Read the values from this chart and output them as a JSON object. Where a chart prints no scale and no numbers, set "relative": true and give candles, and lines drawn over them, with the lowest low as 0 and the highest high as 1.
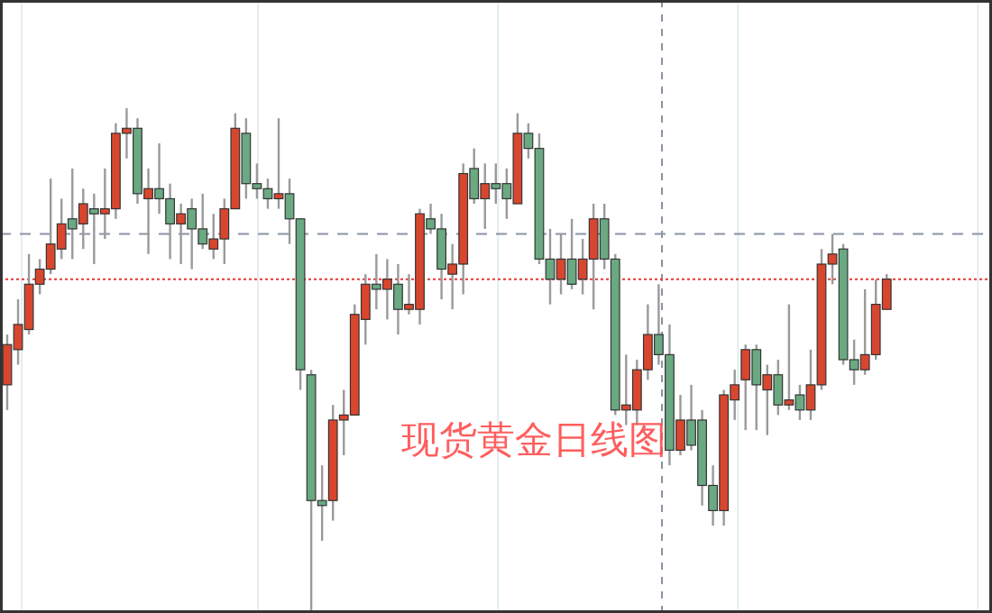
{
  "chart_data": {
    "type": "candlestick",
    "title": "现货黄金日线图",
    "relative": true,
    "categories": [
      null,
      null,
      null,
      null,
      null,
      null,
      null,
      null,
      null,
      null,
      null,
      null,
      null,
      null,
      null,
      null,
      null,
      null,
      null,
      null,
      null,
      null,
      null,
      null,
      null,
      null,
      null,
      null,
      null,
      null,
      null,
      null,
      null,
      null,
      null,
      null,
      null,
      null,
      null,
      null,
      null,
      null,
      null,
      null,
      null,
      null,
      null,
      null,
      null,
      null,
      null,
      null,
      null,
      null,
      null,
      null,
      null,
      null,
      null,
      null,
      null,
      null,
      null,
      null,
      null,
      null,
      null,
      null,
      null,
      null,
      null,
      null,
      null,
      null,
      null,
      null,
      null,
      null,
      null,
      null,
      null,
      null
    ],
    "ohlc": [
      [
        0.45,
        0.55,
        0.4,
        0.53
      ],
      [
        0.52,
        0.62,
        0.49,
        0.57
      ],
      [
        0.56,
        0.71,
        0.55,
        0.65
      ],
      [
        0.65,
        0.7,
        0.63,
        0.68
      ],
      [
        0.68,
        0.86,
        0.67,
        0.73
      ],
      [
        0.72,
        0.82,
        0.7,
        0.77
      ],
      [
        0.78,
        0.88,
        0.7,
        0.76
      ],
      [
        0.77,
        0.84,
        0.72,
        0.81
      ],
      [
        0.8,
        0.83,
        0.69,
        0.79
      ],
      [
        0.79,
        0.88,
        0.74,
        0.8
      ],
      [
        0.8,
        0.97,
        0.78,
        0.95
      ],
      [
        0.95,
        1.0,
        0.9,
        0.96
      ],
      [
        0.96,
        0.98,
        0.81,
        0.83
      ],
      [
        0.82,
        0.88,
        0.71,
        0.84
      ],
      [
        0.84,
        0.93,
        0.79,
        0.82
      ],
      [
        0.82,
        0.85,
        0.7,
        0.77
      ],
      [
        0.77,
        0.81,
        0.69,
        0.79
      ],
      [
        0.8,
        0.82,
        0.68,
        0.76
      ],
      [
        0.76,
        0.83,
        0.72,
        0.73
      ],
      [
        0.72,
        0.79,
        0.7,
        0.74
      ],
      [
        0.74,
        0.82,
        0.69,
        0.8
      ],
      [
        0.8,
        0.99,
        0.8,
        0.96
      ],
      [
        0.95,
        0.98,
        0.82,
        0.85
      ],
      [
        0.85,
        0.89,
        0.82,
        0.84
      ],
      [
        0.84,
        0.86,
        0.8,
        0.82
      ],
      [
        0.82,
        0.98,
        0.8,
        0.83
      ],
      [
        0.83,
        0.86,
        0.73,
        0.78
      ],
      [
        0.78,
        0.78,
        0.44,
        0.48
      ],
      [
        0.47,
        0.48,
        0.0,
        0.22
      ],
      [
        0.22,
        0.29,
        0.14,
        0.21
      ],
      [
        0.22,
        0.41,
        0.18,
        0.38
      ],
      [
        0.38,
        0.44,
        0.31,
        0.39
      ],
      [
        0.39,
        0.61,
        0.39,
        0.59
      ],
      [
        0.58,
        0.67,
        0.53,
        0.65
      ],
      [
        0.65,
        0.71,
        0.6,
        0.64
      ],
      [
        0.64,
        0.7,
        0.58,
        0.66
      ],
      [
        0.65,
        0.69,
        0.55,
        0.6
      ],
      [
        0.6,
        0.67,
        0.59,
        0.61
      ],
      [
        0.6,
        0.8,
        0.57,
        0.79
      ],
      [
        0.78,
        0.81,
        0.75,
        0.76
      ],
      [
        0.76,
        0.79,
        0.62,
        0.68
      ],
      [
        0.67,
        0.73,
        0.6,
        0.69
      ],
      [
        0.69,
        0.89,
        0.63,
        0.87
      ],
      [
        0.88,
        0.92,
        0.81,
        0.82
      ],
      [
        0.82,
        0.89,
        0.76,
        0.85
      ],
      [
        0.85,
        0.89,
        0.81,
        0.84
      ],
      [
        0.85,
        0.88,
        0.78,
        0.82
      ],
      [
        0.81,
        0.99,
        0.81,
        0.95
      ],
      [
        0.95,
        0.97,
        0.9,
        0.92
      ],
      [
        0.92,
        0.95,
        0.69,
        0.7
      ],
      [
        0.7,
        0.76,
        0.61,
        0.66
      ],
      [
        0.66,
        0.75,
        0.63,
        0.7
      ],
      [
        0.7,
        0.78,
        0.64,
        0.65
      ],
      [
        0.66,
        0.74,
        0.63,
        0.7
      ],
      [
        0.7,
        0.81,
        0.6,
        0.78
      ],
      [
        0.78,
        0.81,
        0.68,
        0.7
      ],
      [
        0.7,
        0.71,
        0.39,
        0.4
      ],
      [
        0.4,
        0.51,
        0.37,
        0.41
      ],
      [
        0.4,
        0.5,
        0.37,
        0.48
      ],
      [
        0.48,
        0.61,
        0.46,
        0.55
      ],
      [
        0.55,
        0.65,
        0.49,
        0.51
      ],
      [
        0.51,
        0.57,
        0.29,
        0.32
      ],
      [
        0.32,
        0.43,
        0.31,
        0.38
      ],
      [
        0.38,
        0.45,
        0.32,
        0.33
      ],
      [
        0.38,
        0.4,
        0.21,
        0.25
      ],
      [
        0.25,
        0.29,
        0.17,
        0.2
      ],
      [
        0.2,
        0.44,
        0.17,
        0.43
      ],
      [
        0.42,
        0.48,
        0.38,
        0.45
      ],
      [
        0.46,
        0.53,
        0.36,
        0.52
      ],
      [
        0.52,
        0.53,
        0.36,
        0.45
      ],
      [
        0.44,
        0.49,
        0.35,
        0.47
      ],
      [
        0.47,
        0.5,
        0.39,
        0.41
      ],
      [
        0.41,
        0.61,
        0.4,
        0.42
      ],
      [
        0.43,
        0.45,
        0.38,
        0.4
      ],
      [
        0.4,
        0.52,
        0.38,
        0.45
      ],
      [
        0.45,
        0.72,
        0.44,
        0.69
      ],
      [
        0.69,
        0.75,
        0.65,
        0.71
      ],
      [
        0.72,
        0.73,
        0.49,
        0.5
      ],
      [
        0.5,
        0.54,
        0.45,
        0.48
      ],
      [
        0.48,
        0.64,
        0.47,
        0.51
      ],
      [
        0.51,
        0.66,
        0.5,
        0.61
      ],
      [
        0.6,
        0.67,
        0.6,
        0.66
      ]
    ],
    "colors": [
      "#d9462e",
      "#d9462e",
      "#d9462e",
      "#d9462e",
      "#d9462e",
      "#d9462e",
      "#6aa982",
      "#d9462e",
      "#6aa982",
      "#d9462e",
      "#d9462e",
      "#d9462e",
      "#6aa982",
      "#d9462e",
      "#6aa982",
      "#6aa982",
      "#d9462e",
      "#6aa982",
      "#6aa982",
      "#d9462e",
      "#d9462e",
      "#d9462e",
      "#6aa982",
      "#6aa982",
      "#6aa982",
      "#d9462e",
      "#6aa982",
      "#6aa982",
      "#6aa982",
      "#6aa982",
      "#d9462e",
      "#d9462e",
      "#d9462e",
      "#d9462e",
      "#6aa982",
      "#d9462e",
      "#6aa982",
      "#d9462e",
      "#d9462e",
      "#6aa982",
      "#6aa982",
      "#d9462e",
      "#d9462e",
      "#6aa982",
      "#d9462e",
      "#6aa982",
      "#6aa982",
      "#d9462e",
      "#6aa982",
      "#6aa982",
      "#6aa982",
      "#d9462e",
      "#6aa982",
      "#d9462e",
      "#d9462e",
      "#6aa982",
      "#6aa982",
      "#d9462e",
      "#d9462e",
      "#d9462e",
      "#6aa982",
      "#6aa982",
      "#d9462e",
      "#6aa982",
      "#6aa982",
      "#6aa982",
      "#d9462e",
      "#d9462e",
      "#d9462e",
      "#6aa982",
      "#d9462e",
      "#6aa982",
      "#d9462e",
      "#6aa982",
      "#d9462e",
      "#d9462e",
      "#d9462e",
      "#6aa982",
      "#6aa982",
      "#d9462e",
      "#d9462e",
      "#d9462e"
    ],
    "ref_lines": [
      {
        "axis": "y",
        "value": 0.75,
        "color": "#8a93a3",
        "line_style": "dashed"
      },
      {
        "axis": "y",
        "value": 0.66,
        "color": "#e53935",
        "line_style": "dotted"
      }
    ]
  }
}
